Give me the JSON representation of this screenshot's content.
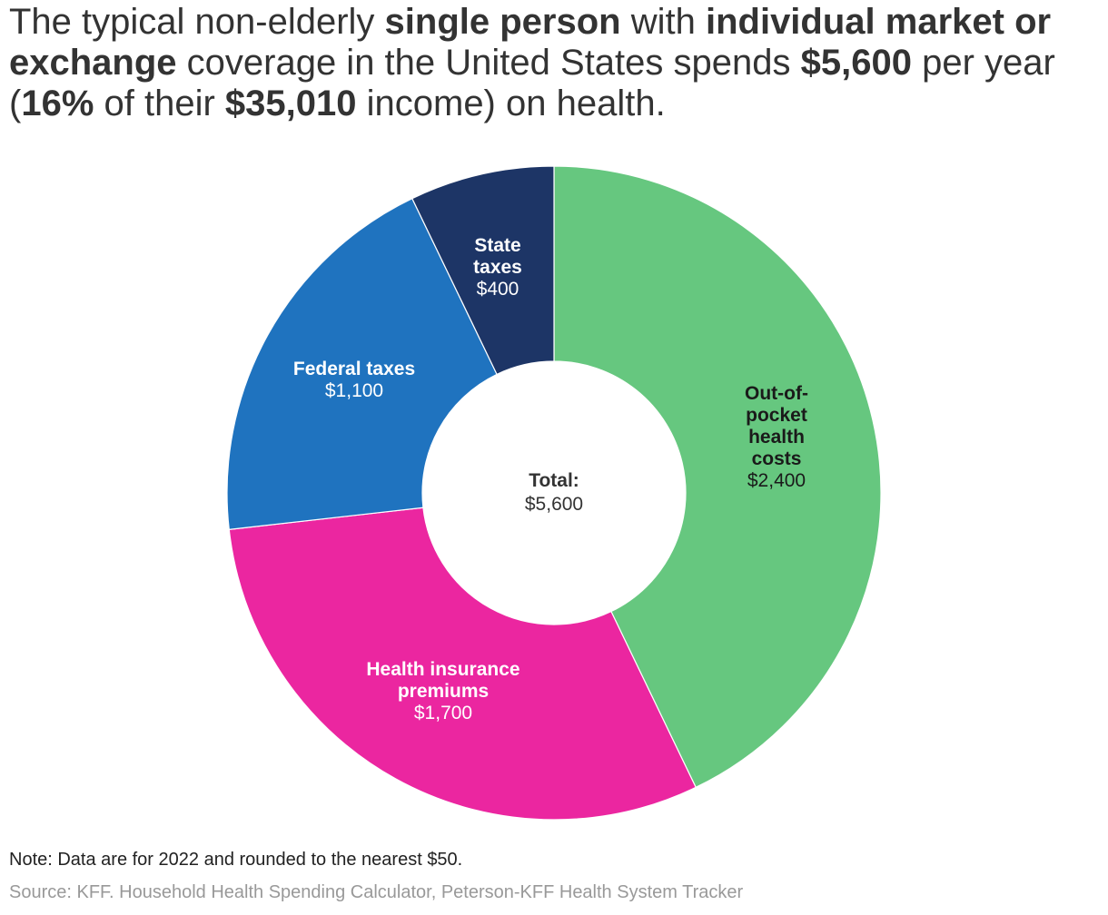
{
  "title": {
    "parts": [
      {
        "text": "The typical non-elderly ",
        "bold": false
      },
      {
        "text": "single person",
        "bold": true
      },
      {
        "text": " with ",
        "bold": false
      },
      {
        "text": "individual market or exchange",
        "bold": true
      },
      {
        "text": " coverage in the United States spends ",
        "bold": false
      },
      {
        "text": "$5,600",
        "bold": true
      },
      {
        "text": " per year (",
        "bold": false
      },
      {
        "text": "16%",
        "bold": true
      },
      {
        "text": " of their ",
        "bold": false
      },
      {
        "text": "$35,010",
        "bold": true
      },
      {
        "text": " income) on health.",
        "bold": false
      }
    ]
  },
  "chart_data": {
    "type": "pie",
    "variant": "donut",
    "center_label": "Total:",
    "center_value": "$5,600",
    "slices": [
      {
        "label": "Out-of-pocket health costs",
        "label_lines": [
          "Out-of-",
          "pocket",
          "health",
          "costs"
        ],
        "value": 2400,
        "value_label": "$2,400",
        "color": "#66c77f",
        "text_color": "#1a1a1a"
      },
      {
        "label": "Health insurance premiums",
        "label_lines": [
          "Health insurance",
          "premiums"
        ],
        "value": 1700,
        "value_label": "$1,700",
        "color": "#eb26a0",
        "text_color": "#ffffff"
      },
      {
        "label": "Federal taxes",
        "label_lines": [
          "Federal taxes"
        ],
        "value": 1100,
        "value_label": "$1,100",
        "color": "#1f73bf",
        "text_color": "#ffffff"
      },
      {
        "label": "State taxes",
        "label_lines": [
          "State",
          "taxes"
        ],
        "value": 400,
        "value_label": "$400",
        "color": "#1d3566",
        "text_color": "#ffffff"
      }
    ]
  },
  "footer": {
    "note": "Note: Data are for 2022 and rounded to the nearest $50.",
    "source": "Source: KFF. Household Health Spending Calculator, Peterson-KFF Health System Tracker"
  }
}
